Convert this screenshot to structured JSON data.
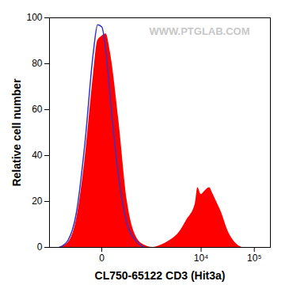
{
  "chart_data": {
    "type": "histogram",
    "x_label": "CL750-65122 CD3 (Hit3a)",
    "y_label": "Relative cell number",
    "annotations": [
      {
        "text": "WWW.PTGLAB.COM"
      }
    ],
    "log": "x",
    "xlim": [
      -1200,
      200000
    ],
    "xticks": [
      0,
      {
        "value": 10000,
        "label": "10⁴"
      },
      {
        "value": 100000,
        "label": "10⁵"
      }
    ],
    "ylim": [
      0,
      100
    ],
    "yticks": [
      0,
      20,
      40,
      60,
      80,
      100
    ],
    "grid": false,
    "series": [
      {
        "type": "area",
        "color": "#ff0000",
        "x": [
          -736,
          -467,
          -281,
          -152,
          -62,
          -28,
          0,
          28,
          62,
          152,
          281,
          467,
          736,
          1122,
          1679,
          2481,
          3640,
          5315,
          7715,
          8630,
          10000,
          11180,
          14480,
          16170,
          19460,
          23360,
          33700,
          40550,
          48740,
          58500
        ],
        "values": [
          0,
          2,
          12,
          38,
          75,
          90,
          92,
          93,
          85,
          55,
          20,
          5,
          1,
          0,
          1,
          3,
          6,
          12,
          19,
          26,
          23,
          24,
          26,
          24,
          20,
          16,
          6,
          3,
          1,
          0
        ]
      },
      {
        "type": "line",
        "color": "#3333cc",
        "x": [
          -736,
          -467,
          -281,
          -152,
          -62,
          -28,
          0,
          28,
          62,
          152,
          281,
          467,
          736
        ],
        "values": [
          0,
          3,
          15,
          45,
          85,
          97,
          96,
          85,
          65,
          30,
          10,
          3,
          0
        ]
      }
    ]
  }
}
